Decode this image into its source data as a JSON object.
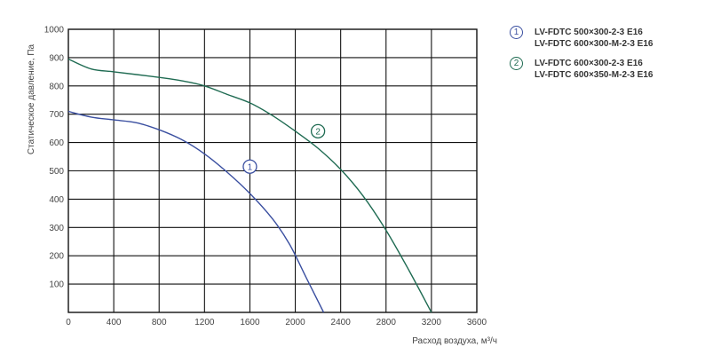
{
  "chart_data": {
    "type": "line",
    "xlabel": "Расход воздуха, м³/ч",
    "ylabel": "Статическое давление, Па",
    "xlim": [
      0,
      3600
    ],
    "ylim": [
      0,
      1000
    ],
    "x_ticks": [
      "0",
      "400",
      "800",
      "1200",
      "1600",
      "2000",
      "2400",
      "2800",
      "3200",
      "3600"
    ],
    "y_ticks": [
      "100",
      "200",
      "300",
      "400",
      "500",
      "600",
      "700",
      "800",
      "900",
      "1000"
    ],
    "grid": true,
    "legend_position": "top-right",
    "series": [
      {
        "marker": "1",
        "color": "#3a4fa0",
        "legend_lines": [
          "LV-FDTC 500×300-2-3 E16",
          "LV-FDTC 600×300-M-2-3 E16"
        ],
        "label_at": [
          1600,
          515
        ],
        "points": [
          [
            0,
            710
          ],
          [
            200,
            690
          ],
          [
            400,
            680
          ],
          [
            600,
            670
          ],
          [
            800,
            645
          ],
          [
            1000,
            610
          ],
          [
            1200,
            560
          ],
          [
            1400,
            495
          ],
          [
            1600,
            420
          ],
          [
            1800,
            330
          ],
          [
            1950,
            240
          ],
          [
            2100,
            120
          ],
          [
            2250,
            0
          ]
        ]
      },
      {
        "marker": "2",
        "color": "#1f6b52",
        "legend_lines": [
          "LV-FDTC 600×300-2-3 E16",
          "LV-FDTC 600×350-M-2-3 E16"
        ],
        "label_at": [
          2200,
          640
        ],
        "points": [
          [
            0,
            895
          ],
          [
            200,
            860
          ],
          [
            400,
            850
          ],
          [
            600,
            840
          ],
          [
            800,
            830
          ],
          [
            1000,
            818
          ],
          [
            1200,
            800
          ],
          [
            1400,
            770
          ],
          [
            1600,
            740
          ],
          [
            1800,
            695
          ],
          [
            2000,
            640
          ],
          [
            2200,
            580
          ],
          [
            2400,
            505
          ],
          [
            2600,
            410
          ],
          [
            2800,
            290
          ],
          [
            3000,
            150
          ],
          [
            3200,
            0
          ]
        ]
      }
    ]
  }
}
